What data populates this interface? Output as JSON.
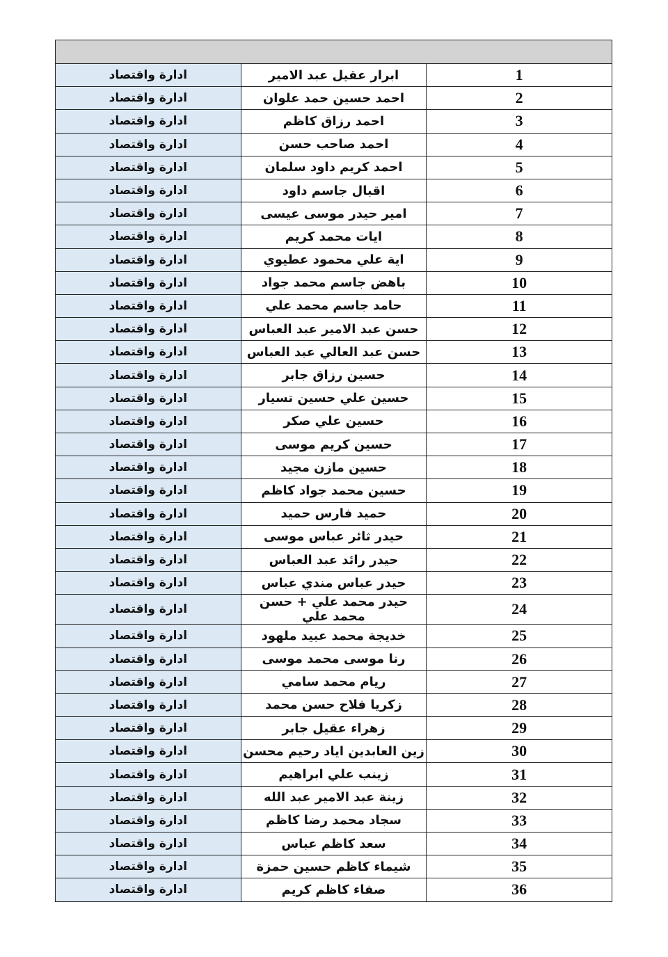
{
  "table": {
    "header": "",
    "rows": [
      {
        "num": "1",
        "name": "ابرار عقيل عبد الامير",
        "dept": "ادارة واقتصاد"
      },
      {
        "num": "2",
        "name": "احمد حسين حمد علوان",
        "dept": "ادارة واقتصاد"
      },
      {
        "num": "3",
        "name": "احمد رزاق كاظم",
        "dept": "ادارة واقتصاد"
      },
      {
        "num": "4",
        "name": "احمد صاحب حسن",
        "dept": "ادارة واقتصاد"
      },
      {
        "num": "5",
        "name": "احمد كريم داود سلمان",
        "dept": "ادارة واقتصاد"
      },
      {
        "num": "6",
        "name": "اقبال جاسم داود",
        "dept": "ادارة واقتصاد"
      },
      {
        "num": "7",
        "name": "امير حيدر موسى عيسى",
        "dept": "ادارة واقتصاد"
      },
      {
        "num": "8",
        "name": "ايات محمد كريم",
        "dept": "ادارة واقتصاد"
      },
      {
        "num": "9",
        "name": "اية علي محمود عطيوي",
        "dept": "ادارة واقتصاد"
      },
      {
        "num": "10",
        "name": "باهض جاسم محمد جواد",
        "dept": "ادارة واقتصاد"
      },
      {
        "num": "11",
        "name": "حامد جاسم محمد علي",
        "dept": "ادارة واقتصاد"
      },
      {
        "num": "12",
        "name": "حسن عبد الامير عبد العباس",
        "dept": "ادارة واقتصاد"
      },
      {
        "num": "13",
        "name": "حسن عبد العالي عبد العباس",
        "dept": "ادارة واقتصاد"
      },
      {
        "num": "14",
        "name": "حسين رزاق جابر",
        "dept": "ادارة واقتصاد"
      },
      {
        "num": "15",
        "name": "حسين علي حسين تسيار",
        "dept": "ادارة واقتصاد"
      },
      {
        "num": "16",
        "name": "حسين علي صكر",
        "dept": "ادارة واقتصاد"
      },
      {
        "num": "17",
        "name": "حسين كريم موسى",
        "dept": "ادارة واقتصاد"
      },
      {
        "num": "18",
        "name": "حسين مازن مجيد",
        "dept": "ادارة واقتصاد"
      },
      {
        "num": "19",
        "name": "حسين محمد جواد كاظم",
        "dept": "ادارة واقتصاد"
      },
      {
        "num": "20",
        "name": "حميد فارس حميد",
        "dept": "ادارة واقتصاد"
      },
      {
        "num": "21",
        "name": "حيدر ثائر عباس موسى",
        "dept": "ادارة واقتصاد"
      },
      {
        "num": "22",
        "name": "حيدر رائد عبد العباس",
        "dept": "ادارة واقتصاد"
      },
      {
        "num": "23",
        "name": "حيدر عباس مندي عباس",
        "dept": "ادارة واقتصاد"
      },
      {
        "num": "24",
        "name": "حيدر محمد علي + حسن محمد علي",
        "dept": "ادارة واقتصاد"
      },
      {
        "num": "25",
        "name": "خديجة محمد عبيد ملهود",
        "dept": "ادارة واقتصاد"
      },
      {
        "num": "26",
        "name": "رنا موسى محمد موسى",
        "dept": "ادارة واقتصاد"
      },
      {
        "num": "27",
        "name": "ريام محمد سامي",
        "dept": "ادارة واقتصاد"
      },
      {
        "num": "28",
        "name": "زكريا فلاح حسن محمد",
        "dept": "ادارة واقتصاد"
      },
      {
        "num": "29",
        "name": "زهراء عقيل جابر",
        "dept": "ادارة واقتصاد"
      },
      {
        "num": "30",
        "name": "زين العابدين اياد رحيم محسن",
        "dept": "ادارة واقتصاد"
      },
      {
        "num": "31",
        "name": "زينب علي ابراهيم",
        "dept": "ادارة واقتصاد"
      },
      {
        "num": "32",
        "name": "زينة عبد الامير عبد الله",
        "dept": "ادارة واقتصاد"
      },
      {
        "num": "33",
        "name": "سجاد محمد رضا كاظم",
        "dept": "ادارة واقتصاد"
      },
      {
        "num": "34",
        "name": "سعد كاظم عباس",
        "dept": "ادارة واقتصاد"
      },
      {
        "num": "35",
        "name": "شيماء كاظم حسين حمزة",
        "dept": "ادارة واقتصاد"
      },
      {
        "num": "36",
        "name": "صفاء كاظم كريم",
        "dept": "ادارة واقتصاد"
      }
    ]
  },
  "colors": {
    "header_bg": "#d3d3d3",
    "dept_bg": "#dce9f5",
    "border": "#222222"
  }
}
